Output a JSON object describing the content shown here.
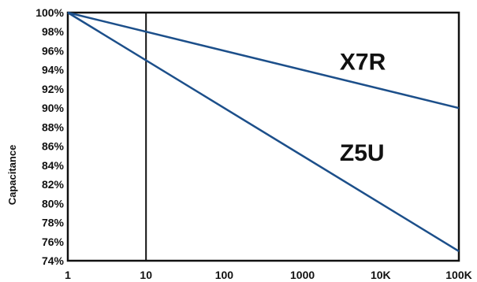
{
  "chart_data": {
    "type": "line",
    "title": "",
    "xlabel": "",
    "ylabel": "Capacitance",
    "x_scale": "log",
    "x_ticks": [
      1,
      10,
      100,
      1000,
      10000,
      100000
    ],
    "x_tick_labels": [
      "1",
      "10",
      "100",
      "1000",
      "10K",
      "100K"
    ],
    "xlim": [
      1,
      100000
    ],
    "y_ticks": [
      74,
      76,
      78,
      80,
      82,
      84,
      86,
      88,
      90,
      92,
      94,
      96,
      98,
      100
    ],
    "y_tick_labels": [
      "74%",
      "76%",
      "78%",
      "80%",
      "82%",
      "84%",
      "86%",
      "88%",
      "90%",
      "92%",
      "94%",
      "96%",
      "98%",
      "100%"
    ],
    "ylim": [
      74,
      100
    ],
    "grid": false,
    "vertical_marker_x": 10,
    "series": [
      {
        "name": "X7R",
        "x": [
          1,
          100000
        ],
        "y": [
          100,
          90
        ],
        "color": "#1c4f8a"
      },
      {
        "name": "Z5U",
        "x": [
          1,
          100000
        ],
        "y": [
          100,
          75
        ],
        "color": "#1c4f8a"
      }
    ]
  }
}
